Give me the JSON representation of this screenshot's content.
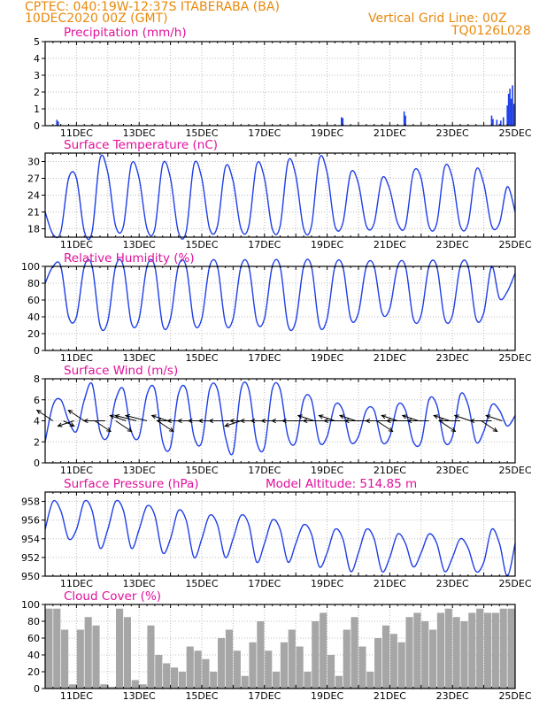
{
  "header": {
    "line1": "CPTEC:   040:19W-12:37S   ITABERABA (BA)",
    "line2": "10DEC2020 00Z (GMT)",
    "grid_note": "Vertical Grid Line: 00Z",
    "code": "TQ0126L028"
  },
  "colors": {
    "header": "#e8890c",
    "title": "#e0109a",
    "series": "#1f3fe6",
    "cloud": "#a6a6a6",
    "wind_arrow": "#000000",
    "grid": "#bdbdbd"
  },
  "day_labels": [
    "11DEC",
    "13DEC",
    "15DEC",
    "17DEC",
    "19DEC",
    "21DEC",
    "23DEC",
    "25DEC"
  ],
  "chart_data": [
    {
      "id": "precip",
      "type": "bar",
      "title": "Precipitation (mm/h)",
      "x_unit": "hours since 10DEC2020 00Z",
      "xlim": [
        0,
        360
      ],
      "ylim": [
        0,
        5
      ],
      "yticks": [
        0,
        1,
        2,
        3,
        4,
        5
      ],
      "x": [
        9,
        10,
        227,
        228,
        275,
        276,
        342,
        343,
        346,
        349,
        351,
        354,
        355,
        356,
        357,
        358,
        359
      ],
      "values": [
        0.35,
        0.25,
        0.5,
        0.45,
        0.85,
        0.6,
        0.6,
        0.4,
        0.35,
        0.3,
        0.5,
        1.2,
        1.9,
        2.2,
        1.6,
        2.4,
        1.3
      ]
    },
    {
      "id": "temp",
      "type": "line",
      "title": "Surface Temperature (nC)",
      "x_unit": "hours since 10DEC2020 00Z",
      "xlim": [
        0,
        360
      ],
      "ylim": [
        16.5,
        31.5
      ],
      "yticks": [
        18,
        21,
        24,
        27,
        30
      ],
      "x": [
        0,
        6,
        12,
        18,
        24,
        30,
        36,
        42,
        48,
        54,
        60,
        66,
        72,
        78,
        84,
        90,
        96,
        102,
        108,
        114,
        120,
        126,
        132,
        138,
        144,
        150,
        156,
        162,
        168,
        174,
        180,
        186,
        192,
        198,
        204,
        210,
        216,
        222,
        228,
        234,
        240,
        246,
        252,
        258,
        264,
        270,
        276,
        282,
        288,
        294,
        300,
        306,
        312,
        318,
        324,
        330,
        336,
        342,
        348,
        354,
        360
      ],
      "values": [
        21,
        17,
        17.5,
        27,
        27,
        17.5,
        17.5,
        30.5,
        28,
        18.5,
        18.5,
        29.5,
        27,
        18,
        18,
        29.5,
        27,
        17.5,
        17.5,
        29.5,
        27,
        18,
        18.5,
        29,
        26.5,
        18,
        18.5,
        29.5,
        27,
        18,
        18.5,
        30,
        27.5,
        18,
        18.5,
        30.5,
        28,
        18.5,
        19,
        28,
        26,
        18.5,
        19,
        27,
        25,
        19,
        18.5,
        28,
        27,
        18.5,
        19,
        29,
        27,
        18.5,
        19,
        28.5,
        26,
        18.5,
        19,
        25.5,
        21
      ]
    },
    {
      "id": "rh",
      "type": "line",
      "title": "Relative Humidity (%)",
      "x_unit": "hours since 10DEC2020 00Z",
      "xlim": [
        0,
        360
      ],
      "ylim": [
        0,
        100
      ],
      "yticks": [
        0,
        20,
        40,
        60,
        80,
        100
      ],
      "x": [
        0,
        6,
        12,
        18,
        24,
        30,
        36,
        42,
        48,
        54,
        60,
        66,
        72,
        78,
        84,
        90,
        96,
        102,
        108,
        114,
        120,
        126,
        132,
        138,
        144,
        150,
        156,
        162,
        168,
        174,
        180,
        186,
        192,
        198,
        204,
        210,
        216,
        222,
        228,
        234,
        240,
        246,
        252,
        258,
        264,
        270,
        276,
        282,
        288,
        294,
        300,
        306,
        312,
        318,
        324,
        330,
        336,
        342,
        348,
        354,
        360
      ],
      "values": [
        80,
        100,
        100,
        40,
        40,
        100,
        100,
        30,
        35,
        100,
        100,
        33,
        38,
        100,
        100,
        30,
        38,
        100,
        100,
        33,
        38,
        100,
        100,
        33,
        38,
        100,
        100,
        35,
        38,
        100,
        100,
        30,
        35,
        100,
        100,
        30,
        38,
        100,
        100,
        38,
        45,
        100,
        100,
        45,
        50,
        100,
        100,
        38,
        42,
        100,
        100,
        38,
        42,
        100,
        100,
        38,
        45,
        100,
        62,
        70,
        92
      ]
    },
    {
      "id": "wind",
      "type": "line",
      "title": "Surface Wind (m/s)",
      "x_unit": "hours since 10DEC2020 00Z",
      "xlim": [
        0,
        360
      ],
      "ylim": [
        0,
        8
      ],
      "yticks": [
        0,
        2,
        4,
        6,
        8
      ],
      "x": [
        0,
        6,
        12,
        18,
        24,
        30,
        36,
        42,
        48,
        54,
        60,
        66,
        72,
        78,
        84,
        90,
        96,
        102,
        108,
        114,
        120,
        126,
        132,
        138,
        144,
        150,
        156,
        162,
        168,
        174,
        180,
        186,
        192,
        198,
        204,
        210,
        216,
        222,
        228,
        234,
        240,
        246,
        252,
        258,
        264,
        270,
        276,
        282,
        288,
        294,
        300,
        306,
        312,
        318,
        324,
        330,
        336,
        342,
        348,
        354,
        360
      ],
      "values": [
        2,
        5.5,
        6,
        4,
        3,
        6,
        7.5,
        3,
        2.5,
        6,
        7,
        3,
        2.5,
        6.5,
        7,
        2,
        1.5,
        6.5,
        7,
        2.5,
        2,
        7,
        7,
        2.5,
        1,
        7,
        7,
        2,
        1.5,
        7,
        7,
        2.5,
        2,
        6,
        6,
        2,
        2.5,
        5.5,
        5,
        2,
        2.5,
        5,
        5,
        2,
        2.5,
        5.5,
        5,
        2,
        2,
        6,
        5.5,
        2,
        2.5,
        6.5,
        5.5,
        2,
        3,
        5.5,
        5,
        3.5,
        4.5
      ],
      "wind_vectors": {
        "x": [
          6,
          14,
          22,
          30,
          38,
          46,
          54,
          62,
          70,
          78,
          86,
          94,
          102,
          110,
          118,
          126,
          134,
          142,
          150,
          158,
          166,
          174,
          182,
          190,
          198,
          206,
          214,
          222,
          230,
          238,
          246,
          254,
          262,
          270,
          278,
          286,
          294,
          302,
          310,
          318,
          326,
          334,
          342,
          350
        ],
        "u": [
          -3,
          2,
          -3,
          -3,
          3,
          -4,
          3,
          -3,
          -4,
          -4,
          3,
          -3,
          -4,
          -4,
          -4,
          -4,
          -4,
          -4,
          -3,
          -4,
          -4,
          -4,
          -4,
          -4,
          -4,
          -3,
          -4,
          -3,
          -4,
          -3,
          -4,
          3,
          -4,
          -3,
          -4,
          -3,
          -4,
          3,
          -3,
          -4,
          -3,
          3,
          -4,
          -3
        ],
        "v": [
          2,
          -1,
          -1,
          2,
          -2,
          0,
          -2,
          1,
          1,
          1,
          -2,
          1,
          0,
          0,
          0,
          0,
          0,
          0,
          -1,
          0,
          0,
          0,
          0,
          0,
          0,
          1,
          0,
          1,
          0,
          1,
          0,
          -2,
          0,
          1,
          0,
          1,
          0,
          -2,
          1,
          0,
          1,
          -2,
          0,
          1
        ]
      }
    },
    {
      "id": "pressure",
      "type": "line",
      "title": "Surface Pressure (hPa)",
      "annotation": "Model Altitude: 514.85 m",
      "x_unit": "hours since 10DEC2020 00Z",
      "xlim": [
        0,
        360
      ],
      "ylim": [
        950,
        959
      ],
      "yticks": [
        950,
        952,
        954,
        956,
        958
      ],
      "x": [
        0,
        6,
        12,
        18,
        24,
        30,
        36,
        42,
        48,
        54,
        60,
        66,
        72,
        78,
        84,
        90,
        96,
        102,
        108,
        114,
        120,
        126,
        132,
        138,
        144,
        150,
        156,
        162,
        168,
        174,
        180,
        186,
        192,
        198,
        204,
        210,
        216,
        222,
        228,
        234,
        240,
        246,
        252,
        258,
        264,
        270,
        276,
        282,
        288,
        294,
        300,
        306,
        312,
        318,
        324,
        330,
        336,
        342,
        348,
        354,
        360
      ],
      "values": [
        955,
        958,
        957,
        954,
        955,
        958,
        957,
        953,
        955,
        958,
        957,
        953,
        955,
        957.5,
        956.5,
        952.5,
        954,
        957,
        956,
        952,
        954,
        956.5,
        955.5,
        952,
        954,
        956.5,
        955.5,
        951.5,
        953.5,
        956,
        955,
        951.5,
        953.5,
        955.5,
        954.5,
        951,
        952.5,
        955,
        954,
        950.5,
        952.5,
        955,
        954,
        950.5,
        952,
        954.5,
        953.5,
        951,
        952.5,
        954.5,
        953.5,
        950.5,
        952,
        954,
        953,
        950.5,
        951.5,
        955,
        953.5,
        950,
        953.5
      ]
    },
    {
      "id": "cloud",
      "type": "bar",
      "title": "Cloud Cover (%)",
      "x_unit": "hours since 10DEC2020 00Z",
      "xlim": [
        0,
        360
      ],
      "ylim": [
        0,
        100
      ],
      "yticks": [
        0,
        20,
        40,
        60,
        80,
        100
      ],
      "x": [
        3,
        9,
        15,
        21,
        27,
        33,
        39,
        45,
        51,
        57,
        63,
        69,
        75,
        81,
        87,
        93,
        99,
        105,
        111,
        117,
        123,
        129,
        135,
        141,
        147,
        153,
        159,
        165,
        171,
        177,
        183,
        189,
        195,
        201,
        207,
        213,
        219,
        225,
        231,
        237,
        243,
        249,
        255,
        261,
        267,
        273,
        279,
        285,
        291,
        297,
        303,
        309,
        315,
        321,
        327,
        333,
        339,
        345,
        351,
        357
      ],
      "values": [
        95,
        95,
        70,
        5,
        70,
        85,
        75,
        5,
        2,
        95,
        85,
        10,
        5,
        75,
        40,
        30,
        25,
        20,
        50,
        45,
        35,
        20,
        60,
        70,
        45,
        15,
        55,
        80,
        45,
        20,
        55,
        70,
        50,
        20,
        80,
        90,
        40,
        15,
        70,
        85,
        50,
        20,
        60,
        75,
        65,
        55,
        85,
        90,
        80,
        70,
        90,
        95,
        85,
        80,
        90,
        95,
        90,
        90,
        95,
        95
      ]
    }
  ]
}
